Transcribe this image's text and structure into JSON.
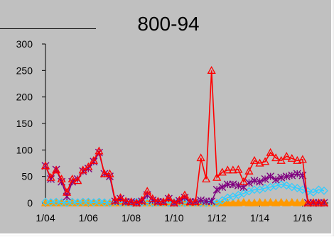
{
  "chart_data": {
    "type": "line",
    "title": "800-94",
    "xlabel": "",
    "ylabel": "",
    "ylim": [
      0,
      300
    ],
    "y_ticks": [
      0,
      50,
      100,
      150,
      200,
      250,
      300
    ],
    "x_range": [
      2004.0,
      2017.2
    ],
    "x_ticks": [
      {
        "x": 2004,
        "label": "1/04"
      },
      {
        "x": 2006,
        "label": "1/06"
      },
      {
        "x": 2008,
        "label": "1/08"
      },
      {
        "x": 2010,
        "label": "1/10"
      },
      {
        "x": 2012,
        "label": "1/12"
      },
      {
        "x": 2014,
        "label": "1/14"
      },
      {
        "x": 2016,
        "label": "1/16"
      }
    ],
    "grid": false,
    "legend": "none",
    "series": [
      {
        "color": "#ff0000",
        "marker": "triangle",
        "x": [
          2004.0,
          2004.25,
          2004.5,
          2004.75,
          2005.0,
          2005.25,
          2005.5,
          2005.75,
          2006.0,
          2006.25,
          2006.5,
          2006.75,
          2007.0,
          2007.25,
          2007.5,
          2007.75,
          2008.0,
          2008.25,
          2008.5,
          2008.75,
          2009.0,
          2009.25,
          2009.5,
          2009.75,
          2010.0,
          2010.25,
          2010.5,
          2010.75,
          2011.0,
          2011.25,
          2011.5,
          2011.75,
          2012.0,
          2012.25,
          2012.5,
          2012.75,
          2013.0,
          2013.25,
          2013.5,
          2013.75,
          2014.0,
          2014.25,
          2014.5,
          2014.75,
          2015.0,
          2015.25,
          2015.5,
          2015.75,
          2016.0,
          2016.25,
          2016.5,
          2016.75,
          2017.0
        ],
        "values": [
          70,
          48,
          62,
          45,
          20,
          45,
          42,
          62,
          68,
          80,
          98,
          55,
          55,
          5,
          10,
          3,
          2,
          0,
          5,
          22,
          8,
          3,
          2,
          10,
          0,
          5,
          15,
          2,
          2,
          85,
          45,
          250,
          48,
          58,
          62,
          62,
          63,
          40,
          60,
          80,
          75,
          78,
          95,
          85,
          80,
          88,
          84,
          80,
          82,
          0,
          0,
          0,
          0
        ]
      },
      {
        "color": "#800080",
        "marker": "asterisk",
        "x": [
          2004.0,
          2004.25,
          2004.5,
          2004.75,
          2005.0,
          2005.25,
          2005.5,
          2005.75,
          2006.0,
          2006.25,
          2006.5,
          2006.75,
          2007.0,
          2007.25,
          2007.5,
          2007.75,
          2008.0,
          2008.25,
          2008.5,
          2008.75,
          2009.0,
          2009.25,
          2009.5,
          2009.75,
          2010.0,
          2010.25,
          2010.5,
          2010.75,
          2011.0,
          2011.25,
          2011.5,
          2011.75,
          2012.0,
          2012.25,
          2012.5,
          2012.75,
          2013.0,
          2013.25,
          2013.5,
          2013.75,
          2014.0,
          2014.25,
          2014.5,
          2014.75,
          2015.0,
          2015.25,
          2015.5,
          2015.75,
          2016.0,
          2016.25,
          2016.5,
          2016.75,
          2017.0
        ],
        "values": [
          70,
          45,
          63,
          40,
          12,
          40,
          45,
          60,
          65,
          78,
          95,
          55,
          50,
          3,
          8,
          2,
          2,
          0,
          3,
          15,
          5,
          2,
          2,
          8,
          0,
          4,
          10,
          2,
          2,
          5,
          3,
          3,
          25,
          30,
          35,
          35,
          33,
          30,
          38,
          42,
          40,
          45,
          50,
          44,
          48,
          50,
          52,
          55,
          52,
          0,
          0,
          0,
          0
        ]
      },
      {
        "color": "#33ccff",
        "marker": "diamond",
        "x": [
          2004.0,
          2004.25,
          2004.5,
          2004.75,
          2005.0,
          2005.25,
          2005.5,
          2005.75,
          2006.0,
          2006.25,
          2006.5,
          2006.75,
          2007.0,
          2007.25,
          2007.5,
          2007.75,
          2008.0,
          2008.25,
          2008.5,
          2008.75,
          2009.0,
          2009.25,
          2009.5,
          2009.75,
          2010.0,
          2010.25,
          2010.5,
          2010.75,
          2011.0,
          2011.25,
          2011.5,
          2011.75,
          2012.0,
          2012.25,
          2012.5,
          2012.75,
          2013.0,
          2013.25,
          2013.5,
          2013.75,
          2014.0,
          2014.25,
          2014.5,
          2014.75,
          2015.0,
          2015.25,
          2015.5,
          2015.75,
          2016.0,
          2016.25,
          2016.5,
          2016.75,
          2017.0
        ],
        "values": [
          2,
          1,
          2,
          1,
          0,
          2,
          1,
          2,
          2,
          1,
          2,
          1,
          0,
          2,
          1,
          1,
          0,
          2,
          1,
          1,
          0,
          1,
          1,
          0,
          1,
          0,
          0,
          1,
          1,
          0,
          0,
          1,
          0,
          5,
          10,
          12,
          15,
          18,
          22,
          25,
          25,
          28,
          30,
          32,
          35,
          33,
          30,
          28,
          25,
          22,
          20,
          25,
          23
        ]
      },
      {
        "color": "#ff9900",
        "marker": "triangle-filled",
        "x": [
          2004.0,
          2004.25,
          2004.5,
          2004.75,
          2005.0,
          2005.25,
          2005.5,
          2005.75,
          2006.0,
          2006.25,
          2006.5,
          2006.75,
          2007.0,
          2007.25,
          2007.5,
          2007.75,
          2008.0,
          2008.25,
          2008.5,
          2008.75,
          2009.0,
          2009.25,
          2009.5,
          2009.75,
          2010.0,
          2010.25,
          2010.5,
          2010.75,
          2011.0,
          2011.25,
          2011.5,
          2011.75,
          2012.0,
          2012.25,
          2012.5,
          2012.75,
          2013.0,
          2013.25,
          2013.5,
          2013.75,
          2014.0,
          2014.25,
          2014.5,
          2014.75,
          2015.0,
          2015.25,
          2015.5,
          2015.75,
          2016.0,
          2016.25,
          2016.5,
          2016.75,
          2017.0
        ],
        "values": [
          0,
          0,
          0,
          0,
          0,
          0,
          0,
          0,
          0,
          0,
          0,
          0,
          0,
          0,
          0,
          0,
          0,
          0,
          0,
          0,
          0,
          0,
          0,
          0,
          0,
          0,
          0,
          0,
          0,
          0,
          0,
          0,
          0,
          0,
          0,
          0,
          0,
          1,
          0,
          0,
          1,
          0,
          1,
          0,
          1,
          0,
          1,
          0,
          1,
          0,
          1,
          0,
          1
        ]
      }
    ]
  }
}
